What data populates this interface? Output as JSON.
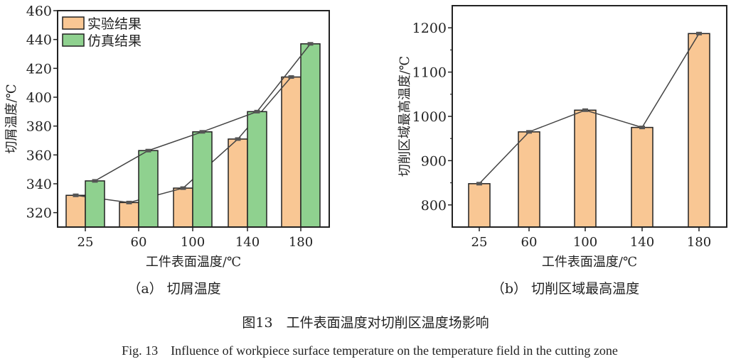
{
  "chart_data": [
    {
      "type": "bar",
      "categories": [
        "25",
        "60",
        "100",
        "140",
        "180"
      ],
      "xlabel": "工件表面温度/℃",
      "ylabel": "切屑温度/℃",
      "ylim": [
        310,
        460
      ],
      "yticks": [
        320,
        340,
        360,
        380,
        400,
        420,
        440,
        460
      ],
      "legend_placement": "top-left",
      "grid": false,
      "series": [
        {
          "name": "实验结果",
          "color": "#f9c794",
          "values": [
            332,
            327,
            337,
            371,
            414
          ]
        },
        {
          "name": "仿真结果",
          "color": "#8fd18f",
          "values": [
            342,
            363,
            376,
            390,
            437
          ]
        }
      ],
      "line_overlay": true,
      "subcaption": "（a） 切屑温度"
    },
    {
      "type": "bar",
      "categories": [
        "25",
        "60",
        "100",
        "140",
        "180"
      ],
      "xlabel": "工件表面温度/℃",
      "ylabel": "切削区域最高温度/℃",
      "ylim": [
        750,
        1250
      ],
      "yticks": [
        800,
        900,
        1000,
        1100,
        1200
      ],
      "grid": false,
      "series": [
        {
          "color": "#f9c794",
          "values": [
            848,
            965,
            1014,
            975,
            1187
          ]
        }
      ],
      "line_overlay": true,
      "subcaption": "（b） 切削区域最高温度"
    }
  ],
  "caption_cn": "图13　工件表面温度对切削区温度场影响",
  "caption_en": "Fig. 13　Influence of workpiece surface temperature on the temperature field in the cutting zone"
}
